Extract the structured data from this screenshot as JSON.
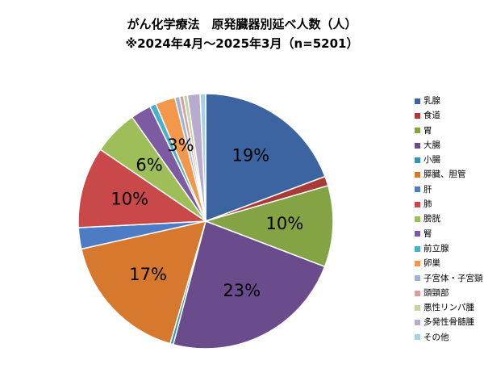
{
  "title": "がん化学療法　原発臓器別延べ人数（人）",
  "subtitle": "※2024年4月～2025年3月（n=5201）",
  "chart_data": {
    "type": "pie",
    "categories": [
      "乳腺",
      "食道",
      "胃",
      "大腸",
      "小腸",
      "膵臓、胆管",
      "肝",
      "肺",
      "膀胱",
      "腎",
      "前立腺",
      "卵巣",
      "子宮体・子宮頸",
      "頭頸部",
      "悪性リンパ腫",
      "多発性骨髄腫",
      "その他"
    ],
    "values": [
      19.3,
      1.2,
      10.3,
      23.3,
      0.4,
      17.0,
      2.7,
      10.3,
      5.7,
      2.6,
      0.8,
      2.5,
      0.6,
      0.5,
      0.5,
      1.6,
      0.7
    ],
    "data_labels": [
      "19%",
      "",
      "10%",
      "23%",
      "",
      "17%",
      "",
      "10%",
      "6%",
      "",
      "",
      "3%",
      "",
      "",
      "",
      "",
      ""
    ],
    "colors": [
      "#3B64A0",
      "#A83A37",
      "#84A344",
      "#6A4C8C",
      "#3196AF",
      "#D6792F",
      "#4E7CC4",
      "#C9494A",
      "#9DBE59",
      "#7C5BA2",
      "#46B1CC",
      "#F3984A",
      "#9FB3D6",
      "#D99F9F",
      "#C3D5A0",
      "#B9ABCF",
      "#A5D1E0"
    ],
    "legend_position": "right"
  }
}
